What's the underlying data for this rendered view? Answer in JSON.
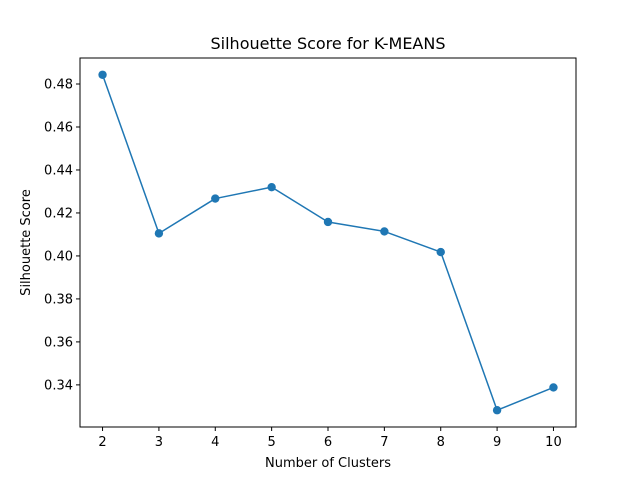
{
  "chart_data": {
    "type": "line",
    "title": "Silhouette Score for K-MEANS",
    "xlabel": "Number of Clusters",
    "ylabel": "Silhouette Score",
    "x": [
      2,
      3,
      4,
      5,
      6,
      7,
      8,
      9,
      10
    ],
    "series": [
      {
        "values": [
          0.4843,
          0.4105,
          0.4267,
          0.432,
          0.4158,
          0.4114,
          0.4018,
          0.3282,
          0.3388
        ],
        "color": "#1f77b4",
        "marker": "circle"
      }
    ],
    "xlim": [
      1.6,
      10.4
    ],
    "ylim": [
      0.3204,
      0.4921
    ],
    "xticks": [
      2,
      3,
      4,
      5,
      6,
      7,
      8,
      9,
      10
    ],
    "yticks": [
      "0.34",
      "0.36",
      "0.38",
      "0.40",
      "0.42",
      "0.44",
      "0.46",
      "0.48"
    ],
    "grid": false,
    "legend": "none"
  }
}
